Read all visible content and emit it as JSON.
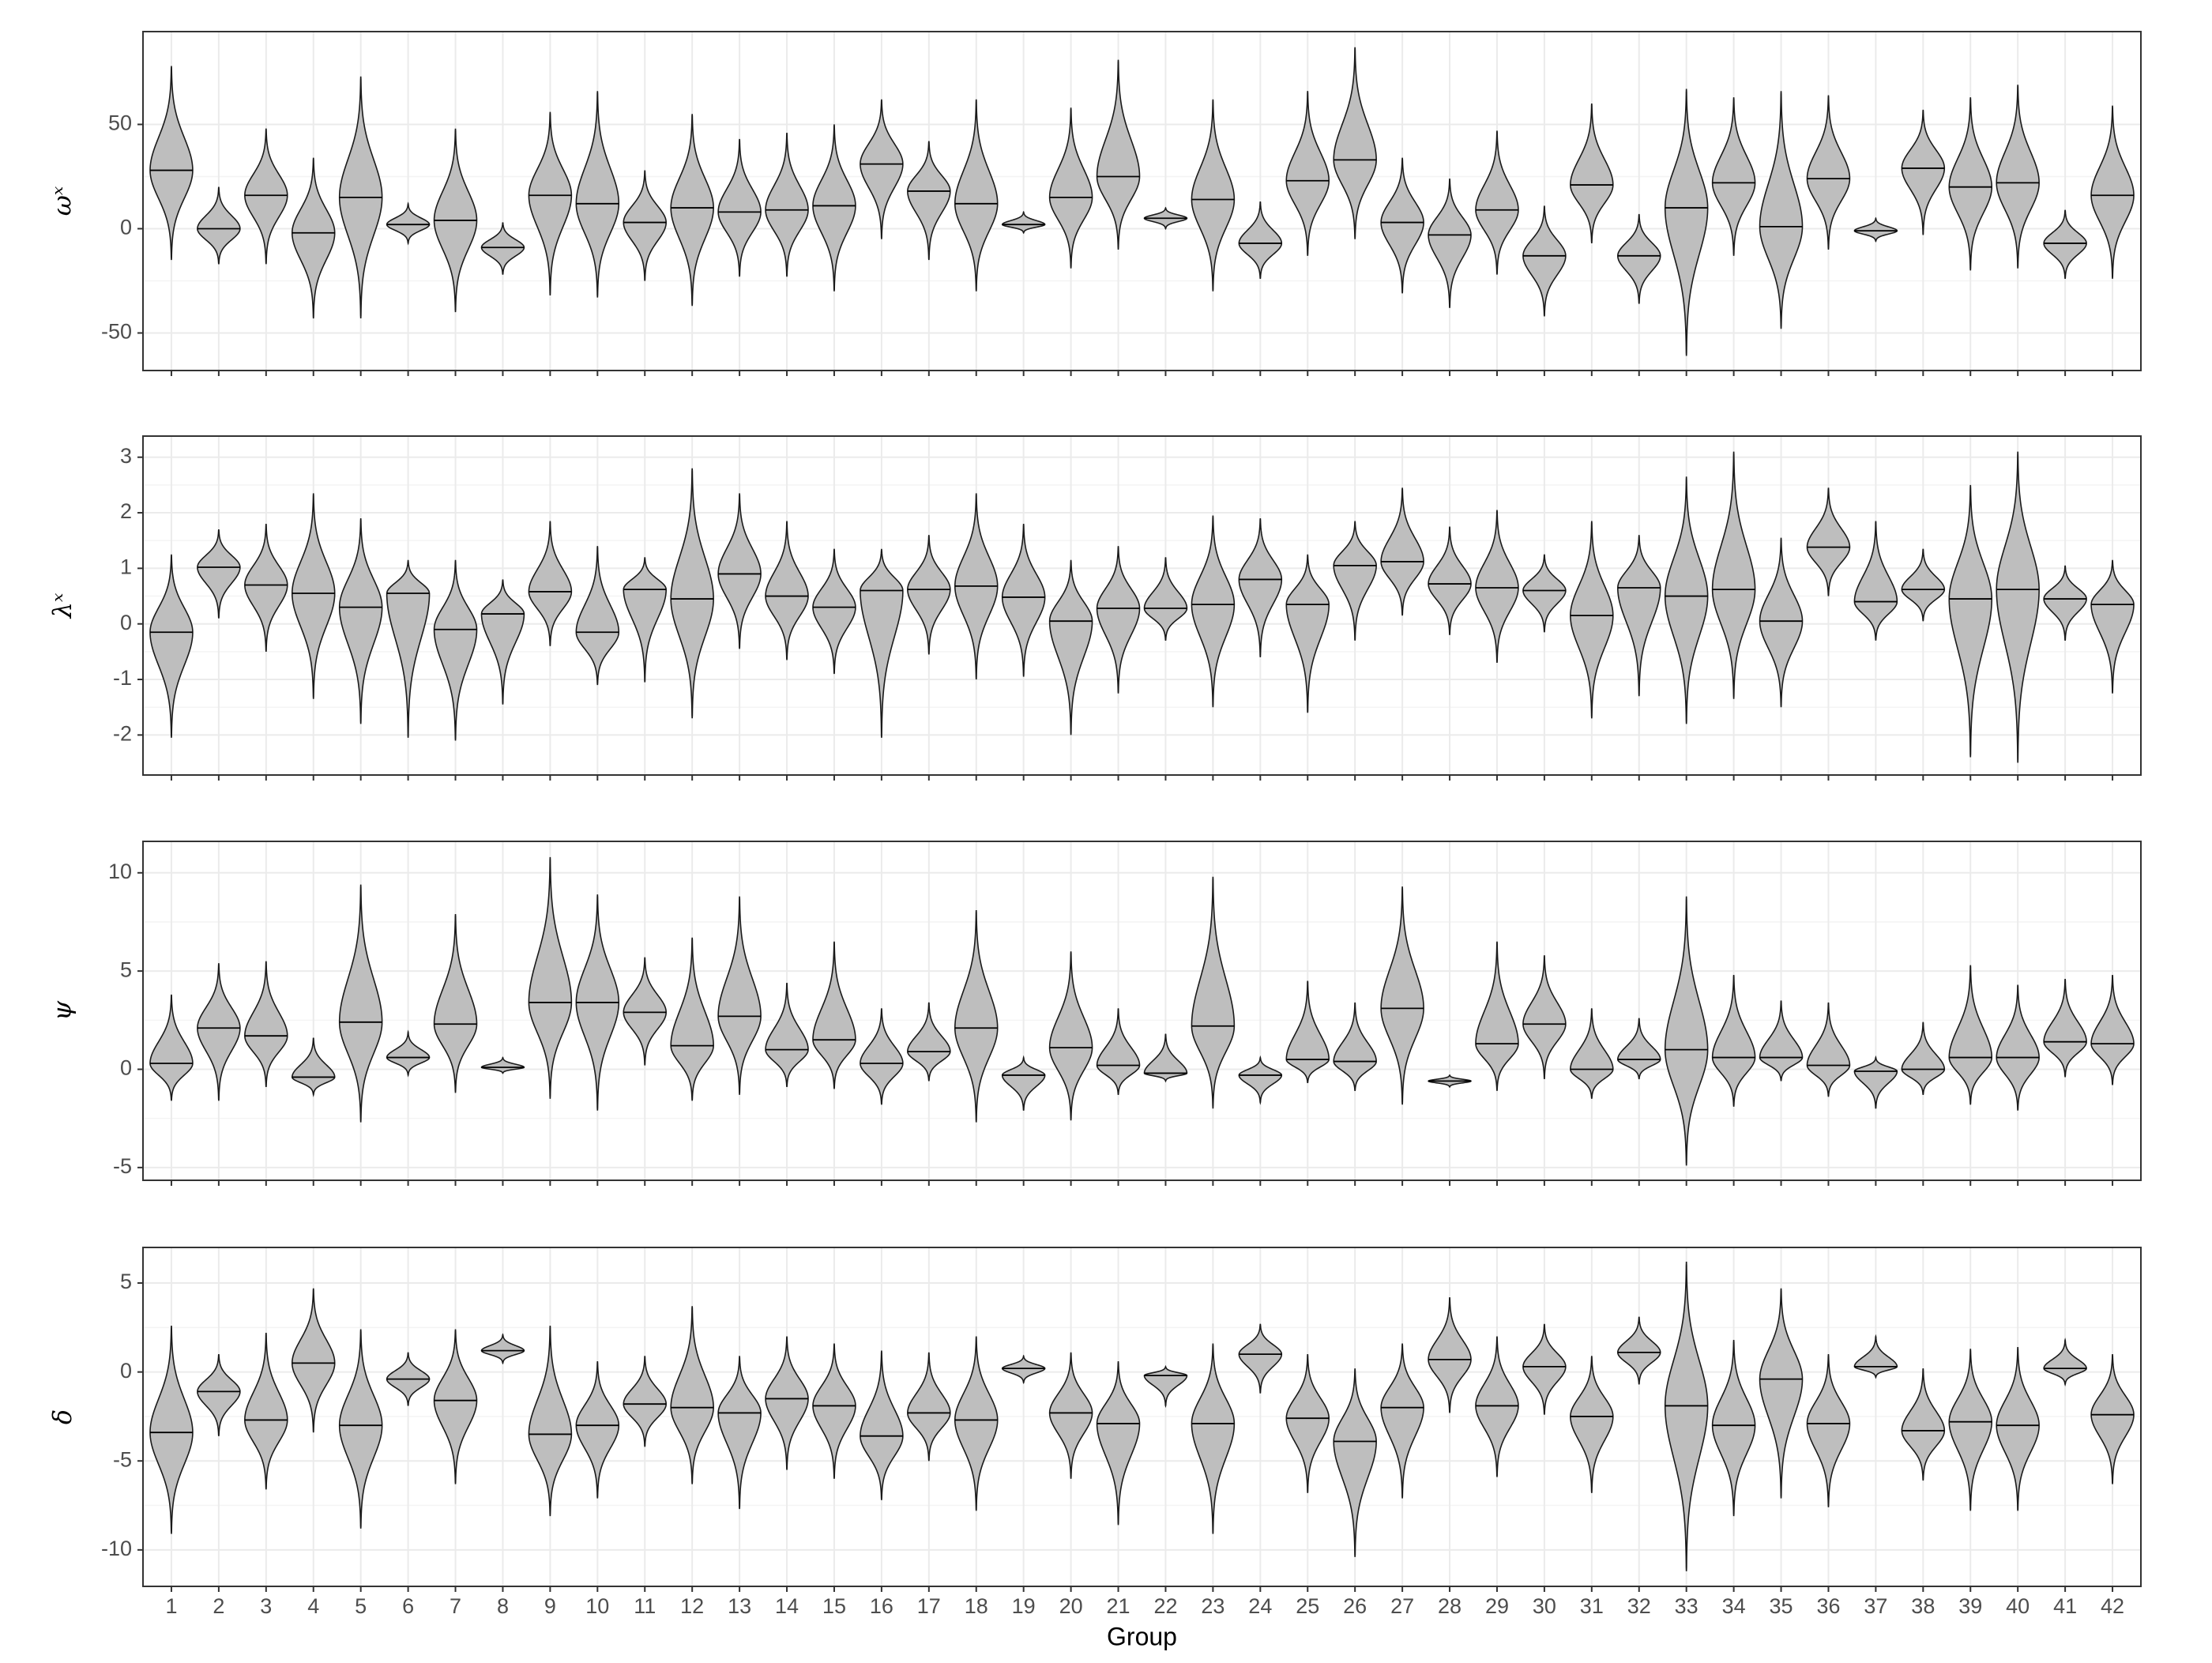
{
  "chart_data": [
    {
      "type": "violin",
      "ylabel": "ωˣ",
      "ylim": [
        -68,
        94.5
      ],
      "yticks": [
        -50,
        0,
        50
      ],
      "grid": true,
      "color": "#bebebe",
      "min": [
        -15,
        -17,
        -17,
        -43,
        -43,
        -7,
        -40,
        -22,
        -32,
        -33,
        -25,
        -37,
        -23,
        -23,
        -30,
        -5,
        -15,
        -30,
        -2,
        -19,
        -10,
        0,
        -30,
        -24,
        -13,
        -5,
        -31,
        -38,
        -22,
        -42,
        -7,
        -36,
        -61,
        -13,
        -48,
        -10,
        -6,
        -3,
        -20,
        -19,
        -24,
        -24
      ],
      "median": [
        28,
        0,
        16,
        -2,
        15,
        2,
        4,
        -9,
        16,
        12,
        3,
        10,
        8,
        9,
        11,
        31,
        18,
        12,
        2,
        15,
        25,
        5,
        14,
        -7,
        23,
        33,
        3,
        -3,
        9,
        -13,
        21,
        -13,
        10,
        22,
        1,
        24,
        -1,
        29,
        20,
        22,
        -7,
        16
      ],
      "max": [
        78,
        20,
        48,
        34,
        73,
        12,
        48,
        3,
        56,
        66,
        28,
        55,
        43,
        46,
        50,
        62,
        42,
        62,
        8,
        58,
        81,
        10,
        62,
        13,
        66,
        87,
        34,
        24,
        47,
        11,
        60,
        7,
        67,
        63,
        66,
        64,
        5,
        57,
        63,
        69,
        9,
        59
      ]
    },
    {
      "type": "violin",
      "ylabel": "λˣ",
      "ylim": [
        -2.72,
        3.38
      ],
      "yticks": [
        -2,
        -1,
        0,
        1,
        2,
        3
      ],
      "grid": true,
      "color": "#bebebe",
      "min": [
        -2.05,
        0.1,
        -0.5,
        -1.35,
        -1.8,
        -2.05,
        -2.1,
        -1.45,
        -0.4,
        -1.1,
        -1.05,
        -1.7,
        -0.45,
        -0.65,
        -0.9,
        -2.05,
        -0.55,
        -1.0,
        -0.95,
        -2.0,
        -1.25,
        -0.3,
        -1.5,
        -0.6,
        -1.6,
        -0.3,
        0.15,
        -0.2,
        -0.7,
        -0.15,
        -1.7,
        -1.3,
        -1.8,
        -1.35,
        -1.5,
        0.5,
        -0.3,
        0.05,
        -2.4,
        -2.5,
        -0.3,
        -1.25
      ],
      "median": [
        -0.15,
        1.02,
        0.7,
        0.55,
        0.3,
        0.55,
        -0.1,
        0.18,
        0.58,
        -0.15,
        0.62,
        0.45,
        0.9,
        0.5,
        0.3,
        0.6,
        0.62,
        0.68,
        0.48,
        0.05,
        0.28,
        0.28,
        0.35,
        0.8,
        0.35,
        1.05,
        1.12,
        0.72,
        0.65,
        0.6,
        0.15,
        0.65,
        0.5,
        0.62,
        0.05,
        1.38,
        0.4,
        0.62,
        0.45,
        0.62,
        0.45,
        0.35
      ],
      "max": [
        1.25,
        1.7,
        1.8,
        2.35,
        1.9,
        1.15,
        1.15,
        0.8,
        1.85,
        1.4,
        1.2,
        2.8,
        2.35,
        1.85,
        1.35,
        1.35,
        1.6,
        2.35,
        1.8,
        1.15,
        1.4,
        1.2,
        1.95,
        1.9,
        1.25,
        1.85,
        2.45,
        1.75,
        2.05,
        1.25,
        1.85,
        1.6,
        2.65,
        3.1,
        1.55,
        2.45,
        1.85,
        1.35,
        2.5,
        3.1,
        1.05,
        1.15
      ]
    },
    {
      "type": "violin",
      "ylabel": "ψ",
      "ylim": [
        -5.65,
        11.6
      ],
      "yticks": [
        -5,
        0,
        5,
        10
      ],
      "grid": true,
      "color": "#bebebe",
      "min": [
        -1.6,
        -1.6,
        -0.9,
        -1.3,
        -2.7,
        -0.3,
        -1.2,
        -0.2,
        -1.5,
        -2.1,
        0.2,
        -1.6,
        -1.3,
        -0.9,
        -1.0,
        -1.8,
        -0.6,
        -2.7,
        -2.1,
        -2.6,
        -1.3,
        -0.6,
        -2.0,
        -1.7,
        -0.7,
        -1.1,
        -1.8,
        -0.9,
        -1.1,
        -0.5,
        -1.5,
        -0.5,
        -4.9,
        -1.9,
        -0.6,
        -1.4,
        -2.0,
        -1.3,
        -1.8,
        -2.1,
        -0.4,
        -0.8
      ],
      "median": [
        0.3,
        2.1,
        1.7,
        -0.4,
        2.4,
        0.6,
        2.3,
        0.1,
        3.4,
        3.4,
        2.9,
        1.2,
        2.7,
        1.0,
        1.5,
        0.3,
        0.9,
        2.1,
        -0.3,
        1.1,
        0.2,
        -0.2,
        2.2,
        -0.3,
        0.5,
        0.4,
        3.1,
        -0.6,
        1.3,
        2.3,
        0.0,
        0.5,
        1.0,
        0.6,
        0.6,
        0.2,
        -0.1,
        0.0,
        0.6,
        0.6,
        1.4,
        1.3
      ],
      "max": [
        3.8,
        5.4,
        5.5,
        1.6,
        9.4,
        1.9,
        7.9,
        0.6,
        10.8,
        8.9,
        5.7,
        6.7,
        8.8,
        4.4,
        6.5,
        3.1,
        3.4,
        8.1,
        0.6,
        6.0,
        3.1,
        1.8,
        9.8,
        0.6,
        4.5,
        3.4,
        9.3,
        -0.3,
        6.5,
        5.8,
        3.1,
        2.6,
        8.8,
        4.8,
        3.5,
        3.4,
        0.6,
        2.4,
        5.3,
        4.3,
        4.6,
        4.8
      ]
    },
    {
      "type": "violin",
      "ylabel": "δ",
      "xlabel": "Group",
      "ylim": [
        -12.05,
        7.0
      ],
      "yticks": [
        -10,
        -5,
        0,
        5
      ],
      "grid": true,
      "color": "#bebebe",
      "categories": [
        "1",
        "2",
        "3",
        "4",
        "5",
        "6",
        "7",
        "8",
        "9",
        "10",
        "11",
        "12",
        "13",
        "14",
        "15",
        "16",
        "17",
        "18",
        "19",
        "20",
        "21",
        "22",
        "23",
        "24",
        "25",
        "26",
        "27",
        "28",
        "29",
        "30",
        "31",
        "32",
        "33",
        "34",
        "35",
        "36",
        "37",
        "38",
        "39",
        "40",
        "41",
        "42"
      ],
      "min": [
        -9.1,
        -3.6,
        -6.6,
        -3.4,
        -8.8,
        -1.9,
        -6.3,
        0.5,
        -8.1,
        -7.1,
        -4.2,
        -6.3,
        -7.7,
        -5.5,
        -6.0,
        -7.2,
        -5.0,
        -7.8,
        -0.6,
        -6.0,
        -8.6,
        -1.9,
        -9.1,
        -1.2,
        -6.8,
        -10.4,
        -7.1,
        -2.3,
        -5.9,
        -2.4,
        -6.8,
        -0.7,
        -11.2,
        -8.1,
        -7.1,
        -7.6,
        -0.3,
        -6.1,
        -7.8,
        -7.8,
        -0.7,
        -6.3
      ],
      "median": [
        -3.4,
        -1.1,
        -2.7,
        0.5,
        -3.0,
        -0.4,
        -1.6,
        1.2,
        -3.5,
        -3.0,
        -1.8,
        -2.0,
        -2.3,
        -1.5,
        -1.9,
        -3.6,
        -2.3,
        -2.7,
        0.2,
        -2.3,
        -2.9,
        -0.2,
        -2.9,
        1.0,
        -2.6,
        -3.9,
        -2.0,
        0.7,
        -1.9,
        0.3,
        -2.5,
        1.1,
        -1.9,
        -3.0,
        -0.4,
        -2.9,
        0.3,
        -3.3,
        -2.8,
        -3.0,
        0.2,
        -2.4
      ],
      "max": [
        2.6,
        1.0,
        2.2,
        4.7,
        2.4,
        1.1,
        2.4,
        2.1,
        2.6,
        0.6,
        0.9,
        3.7,
        0.9,
        2.0,
        1.6,
        1.2,
        1.1,
        2.0,
        0.9,
        1.1,
        0.6,
        0.3,
        1.6,
        2.7,
        1.0,
        0.2,
        1.6,
        4.2,
        2.0,
        2.7,
        0.9,
        3.1,
        6.2,
        1.8,
        4.7,
        1.0,
        2.0,
        0.2,
        1.3,
        1.4,
        1.8,
        1.0
      ]
    }
  ]
}
